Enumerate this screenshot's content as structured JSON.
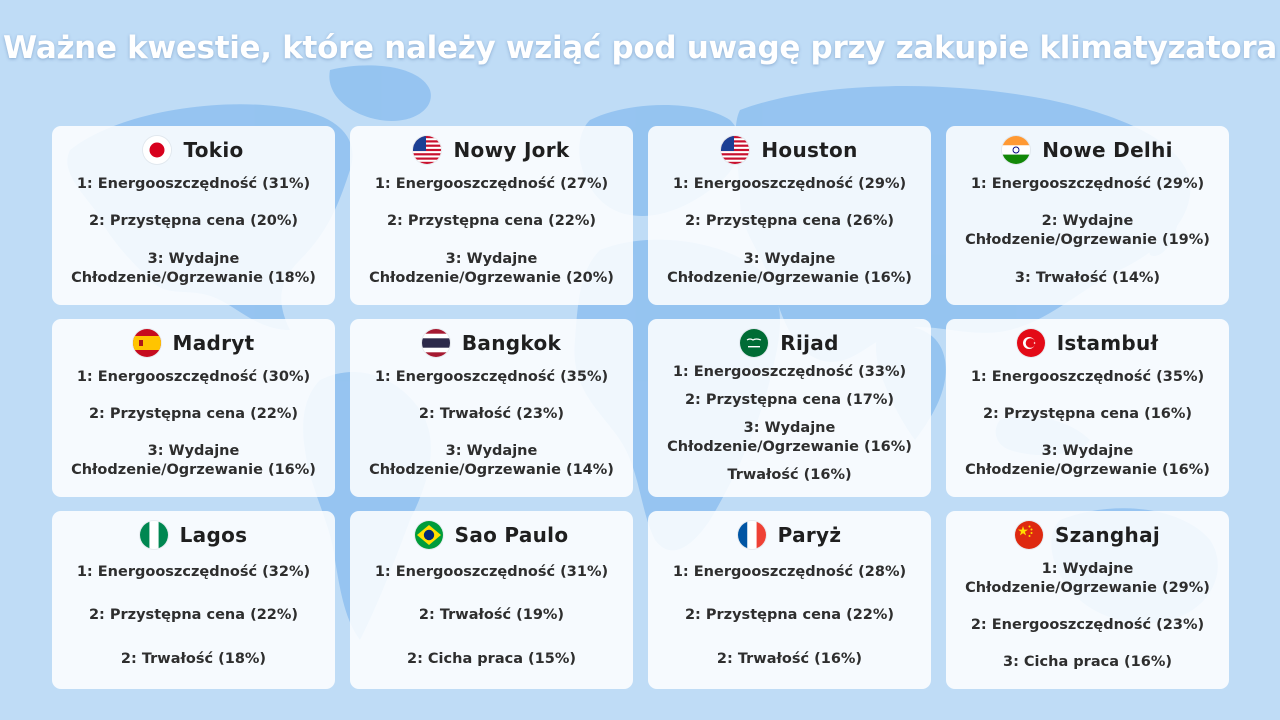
{
  "title": "Ważne kwestie, które należy wziąć pod uwagę przy zakupie klimatyzatora",
  "colors": {
    "background": "#bfdcf6",
    "land": "#8dbff0",
    "card": "#ffffff",
    "text": "#2e2e2e"
  },
  "cards": [
    {
      "city": "Tokio",
      "flag": "japan-flag-icon",
      "items": [
        "1: Energooszczędność (31%)",
        "2: Przystępna cena (20%)",
        "3: Wydajne Chłodzenie/Ogrzewanie (18%)"
      ]
    },
    {
      "city": "Nowy Jork",
      "flag": "usa-flag-icon",
      "items": [
        "1: Energooszczędność (27%)",
        "2: Przystępna cena (22%)",
        "3: Wydajne Chłodzenie/Ogrzewanie (20%)"
      ]
    },
    {
      "city": "Houston",
      "flag": "usa-flag-icon",
      "items": [
        "1: Energooszczędność (29%)",
        "2: Przystępna cena (26%)",
        "3: Wydajne Chłodzenie/Ogrzewanie (16%)"
      ]
    },
    {
      "city": "Nowe Delhi",
      "flag": "india-flag-icon",
      "items": [
        "1: Energooszczędność (29%)",
        "2: Wydajne Chłodzenie/Ogrzewanie (19%)",
        "3: Trwałość (14%)"
      ]
    },
    {
      "city": "Madryt",
      "flag": "spain-flag-icon",
      "items": [
        "1: Energooszczędność (30%)",
        "2: Przystępna cena (22%)",
        "3: Wydajne Chłodzenie/Ogrzewanie (16%)"
      ]
    },
    {
      "city": "Bangkok",
      "flag": "thailand-flag-icon",
      "items": [
        "1: Energooszczędność (35%)",
        "2: Trwałość (23%)",
        "3: Wydajne Chłodzenie/Ogrzewanie (14%)"
      ]
    },
    {
      "city": "Rijad",
      "flag": "saudi-arabia-flag-icon",
      "items": [
        "1: Energooszczędność (33%)",
        "2: Przystępna cena (17%)",
        "3: Wydajne Chłodzenie/Ogrzewanie (16%)",
        "Trwałość (16%)"
      ]
    },
    {
      "city": "Istambuł",
      "flag": "turkey-flag-icon",
      "items": [
        "1: Energooszczędność (35%)",
        "2: Przystępna cena (16%)",
        "3: Wydajne Chłodzenie/Ogrzewanie (16%)"
      ]
    },
    {
      "city": "Lagos",
      "flag": "nigeria-flag-icon",
      "items": [
        "1: Energooszczędność (32%)",
        "2: Przystępna cena (22%)",
        "2: Trwałość (18%)"
      ]
    },
    {
      "city": "Sao Paulo",
      "flag": "brazil-flag-icon",
      "items": [
        "1: Energooszczędność (31%)",
        "2: Trwałość (19%)",
        "2: Cicha praca (15%)"
      ]
    },
    {
      "city": "Paryż",
      "flag": "france-flag-icon",
      "items": [
        "1: Energooszczędność (28%)",
        "2: Przystępna cena (22%)",
        "2: Trwałość (16%)"
      ]
    },
    {
      "city": "Szanghaj",
      "flag": "china-flag-icon",
      "items": [
        "1: Wydajne Chłodzenie/Ogrzewanie (29%)",
        "2: Energooszczędność (23%)",
        "3: Cicha praca (16%)"
      ]
    }
  ]
}
